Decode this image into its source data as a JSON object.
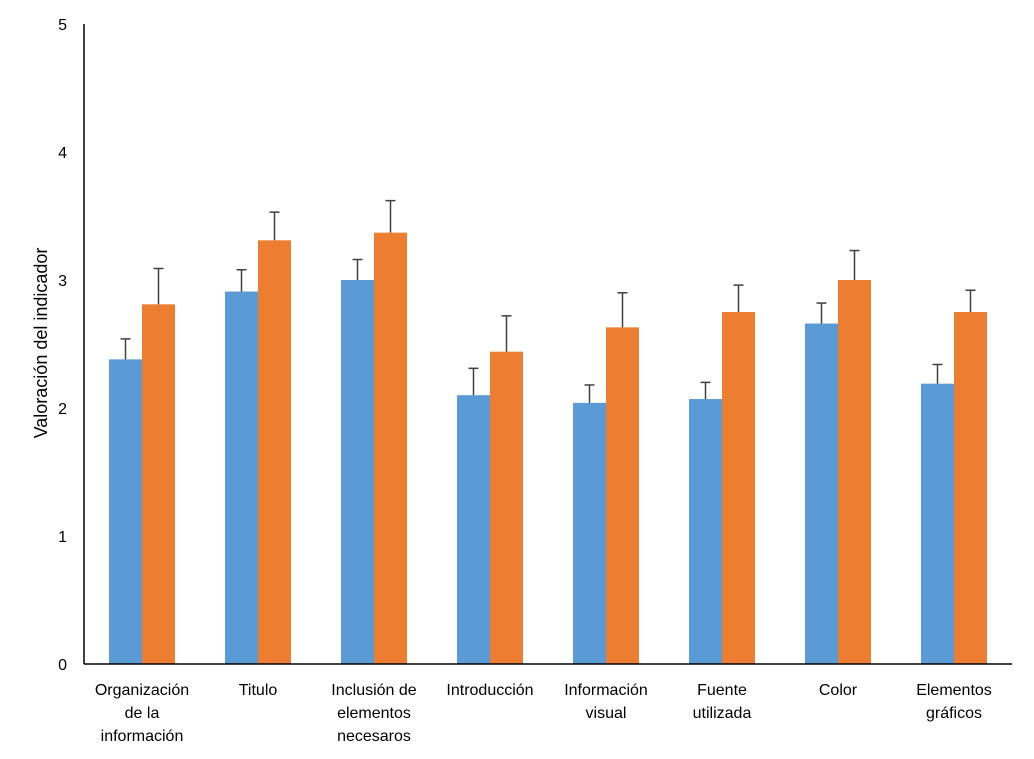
{
  "chart_data": {
    "type": "bar",
    "title": "",
    "xlabel": "",
    "ylabel": "Valoración del indicador",
    "ylim": [
      0,
      5
    ],
    "yticks": [
      "0",
      "1",
      "2",
      "3",
      "4",
      "5"
    ],
    "grid": false,
    "legend": "none",
    "categories": [
      [
        "Organización",
        "de la",
        "información"
      ],
      [
        "Titulo"
      ],
      [
        "Inclusión de",
        "elementos",
        "necesaros"
      ],
      [
        "Introducción"
      ],
      [
        "Información",
        "visual"
      ],
      [
        "Fuente",
        "utilizada"
      ],
      [
        "Color"
      ],
      [
        "Elementos",
        "gráficos"
      ]
    ],
    "series": [
      {
        "color": "#5B9BD5",
        "values": [
          2.38,
          2.91,
          3.0,
          2.1,
          2.04,
          2.07,
          2.66,
          2.19
        ],
        "errors": [
          0.16,
          0.17,
          0.16,
          0.21,
          0.14,
          0.13,
          0.16,
          0.15
        ]
      },
      {
        "color": "#ED7D31",
        "values": [
          2.81,
          3.31,
          3.37,
          2.44,
          2.63,
          2.75,
          3.0,
          2.75
        ],
        "errors": [
          0.28,
          0.22,
          0.25,
          0.28,
          0.27,
          0.21,
          0.23,
          0.17
        ]
      }
    ]
  }
}
